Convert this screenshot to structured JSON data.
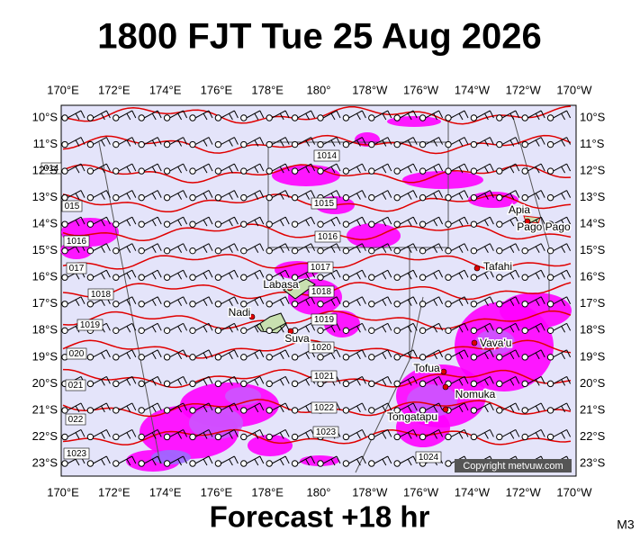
{
  "title": "1800 FJT Tue 25 Aug 2026",
  "footer": "Forecast +18 hr",
  "code": "M3",
  "copyright": "Copyright metvuw.com",
  "longitude_labels": [
    "170°E",
    "172°E",
    "174°E",
    "176°E",
    "178°E",
    "180°",
    "178°W",
    "176°W",
    "174°W",
    "172°W",
    "170°W"
  ],
  "latitude_labels": [
    "10°S",
    "11°S",
    "12°S",
    "13°S",
    "14°S",
    "15°S",
    "16°S",
    "17°S",
    "18°S",
    "19°S",
    "20°S",
    "21°S",
    "22°S",
    "23°S"
  ],
  "isobar_labels": [
    "1014",
    "1015",
    "1016",
    "1017",
    "1018",
    "1019",
    "1020",
    "1021",
    "1022",
    "1023",
    "1024",
    "014",
    "015",
    "1016",
    "017",
    "1018",
    "1019",
    "020",
    "021",
    "022",
    "1023"
  ],
  "places": [
    "Apia",
    "Pago Pago",
    "Tafahi",
    "Labasa",
    "Nadi",
    "Suva",
    "Vava'u",
    "Tofua",
    "Nomuka",
    "Tongatapu"
  ]
}
